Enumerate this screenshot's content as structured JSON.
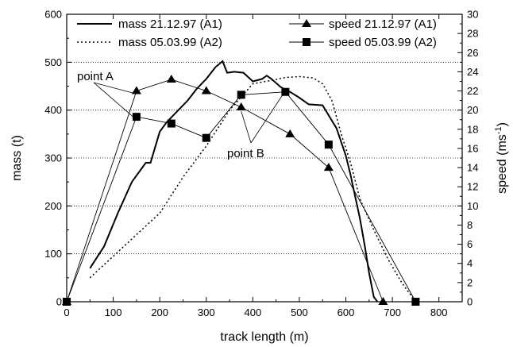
{
  "chart_data": {
    "type": "line",
    "xlabel": "track length (m)",
    "ylabel_left": "mass (t)",
    "ylabel_right": "speed (ms",
    "ylabel_right_exponent": "-1",
    "ylabel_right_close": ")",
    "xlim": [
      0,
      850
    ],
    "ylim_left": [
      0,
      600
    ],
    "ylim_right": [
      0,
      30
    ],
    "xticks": [
      0,
      100,
      200,
      300,
      400,
      500,
      600,
      700,
      800
    ],
    "yticks_left": [
      0,
      100,
      200,
      300,
      400,
      500,
      600
    ],
    "yticks_right": [
      0,
      2,
      4,
      6,
      8,
      10,
      12,
      14,
      16,
      18,
      20,
      22,
      24,
      26,
      28,
      30
    ],
    "grid": "horizontal dotted at left-axis major ticks",
    "series": [
      {
        "name": "mass 21.12.97 (A1)",
        "axis": "left",
        "style": "solid",
        "x": [
          50,
          80,
          110,
          140,
          170,
          180,
          200,
          215,
          235,
          260,
          280,
          300,
          320,
          335,
          345,
          360,
          380,
          400,
          420,
          430,
          440,
          460,
          480,
          500,
          520,
          550,
          580,
          600,
          610,
          620,
          630,
          640,
          650,
          660,
          668
        ],
        "y": [
          70,
          115,
          185,
          250,
          290,
          290,
          355,
          375,
          395,
          420,
          445,
          465,
          490,
          502,
          478,
          480,
          478,
          460,
          465,
          472,
          465,
          448,
          438,
          426,
          412,
          410,
          362,
          305,
          265,
          220,
          175,
          120,
          60,
          10,
          0
        ]
      },
      {
        "name": "mass 05.03.99 (A2)",
        "axis": "left",
        "style": "dotted",
        "x": [
          50,
          100,
          150,
          200,
          250,
          300,
          350,
          400,
          440,
          470,
          500,
          530,
          550,
          570,
          590,
          610,
          630,
          660,
          690,
          720,
          750
        ],
        "y": [
          50,
          95,
          140,
          185,
          260,
          325,
          400,
          455,
          462,
          468,
          470,
          467,
          455,
          420,
          350,
          290,
          215,
          150,
          90,
          40,
          0
        ]
      },
      {
        "name": "speed 21.12.97 (A1)",
        "axis": "right",
        "marker": "triangle",
        "x": [
          0,
          150,
          225,
          300,
          375,
          480,
          563,
          680
        ],
        "y": [
          0,
          22,
          23.2,
          22,
          20.3,
          17.5,
          14,
          0
        ]
      },
      {
        "name": "speed 05.03.99 (A2)",
        "axis": "right",
        "marker": "square",
        "x": [
          0,
          150,
          225,
          300,
          375,
          470,
          563,
          750
        ],
        "y": [
          0,
          19.3,
          18.6,
          17.1,
          21.6,
          21.9,
          16.4,
          0
        ]
      }
    ],
    "annotations": [
      {
        "text": "point A"
      },
      {
        "text": "point B"
      }
    ],
    "legend": [
      {
        "label": "mass 21.12.97 (A1)"
      },
      {
        "label": "mass 05.03.99 (A2)"
      },
      {
        "label": "speed 21.12.97 (A1)"
      },
      {
        "label": "speed 05.03.99 (A2)"
      }
    ]
  }
}
